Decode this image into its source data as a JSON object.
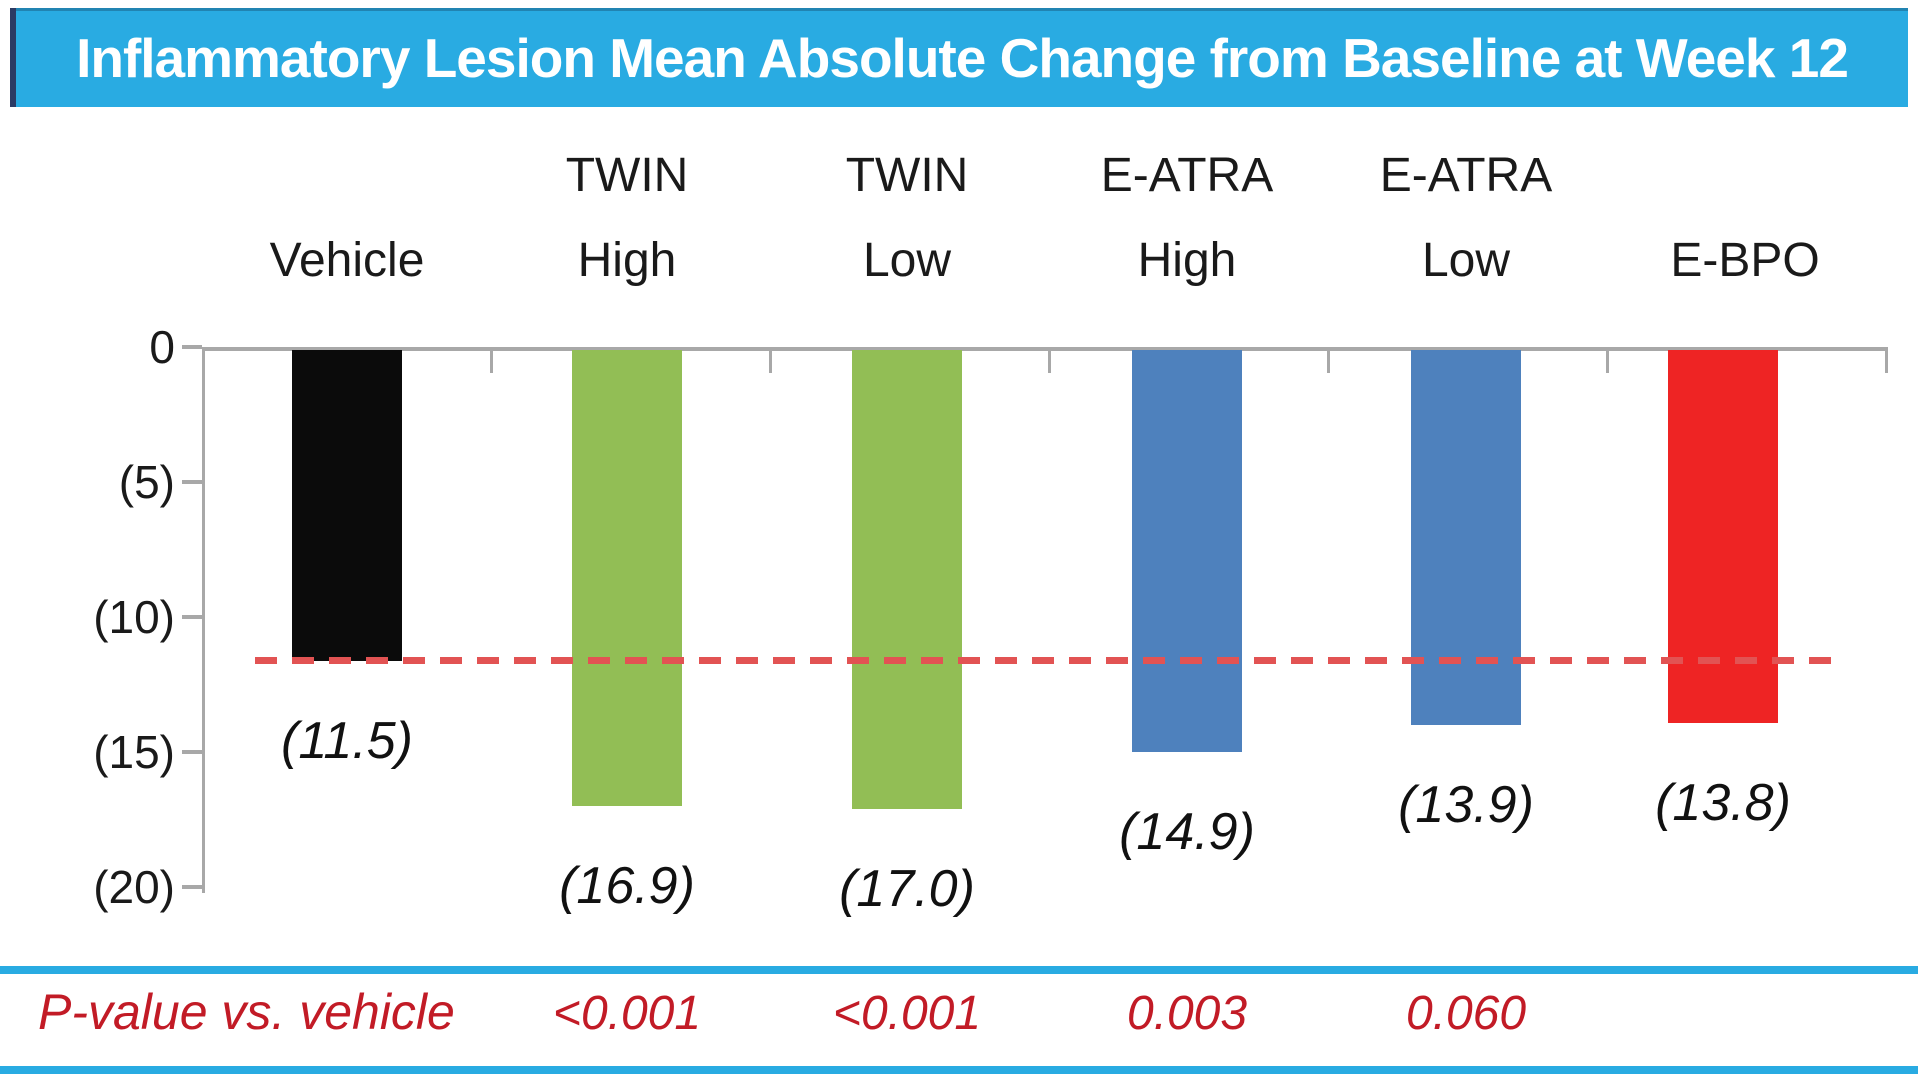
{
  "title": "Inflammatory Lesion Mean Absolute Change from Baseline at Week 12",
  "chart_data": {
    "type": "bar",
    "title": "Inflammatory Lesion Mean Absolute Change from Baseline at Week 12",
    "categories": [
      "Vehicle",
      "TWIN High",
      "TWIN Low",
      "E-ATRA High",
      "E-ATRA Low",
      "E-BPO"
    ],
    "category_lines": [
      [
        "",
        "Vehicle"
      ],
      [
        "TWIN",
        "High"
      ],
      [
        "TWIN",
        "Low"
      ],
      [
        "E-ATRA",
        "High"
      ],
      [
        "E-ATRA",
        "Low"
      ],
      [
        "",
        "E-BPO"
      ]
    ],
    "values": [
      -11.5,
      -16.9,
      -17.0,
      -14.9,
      -13.9,
      -13.8
    ],
    "value_labels": [
      "(11.5)",
      "(16.9)",
      "(17.0)",
      "(14.9)",
      "(13.9)",
      "(13.8)"
    ],
    "bar_colors": [
      "#0b0b0b",
      "#92BE55",
      "#92BE55",
      "#4E81BD",
      "#4E81BD",
      "#EE2424"
    ],
    "xlabel": "",
    "ylabel": "",
    "ylim": [
      -20,
      0
    ],
    "ytick_labels": [
      "0",
      "(5)",
      "(10)",
      "(15)",
      "(20)"
    ],
    "reference_line": {
      "value": -11.5,
      "style": "dashed",
      "color": "#E25353"
    },
    "grid": false,
    "legend": "none"
  },
  "p_value_row": {
    "label": "P-value vs. vehicle",
    "values": [
      "<0.001",
      "<0.001",
      "0.003",
      "0.060"
    ]
  },
  "colors": {
    "header_bg": "#29ABE2",
    "header_text": "#FFFFFF",
    "separator": "#29ABE2",
    "axis": "#A8A8A8",
    "pvalue_text": "#C21B26"
  }
}
